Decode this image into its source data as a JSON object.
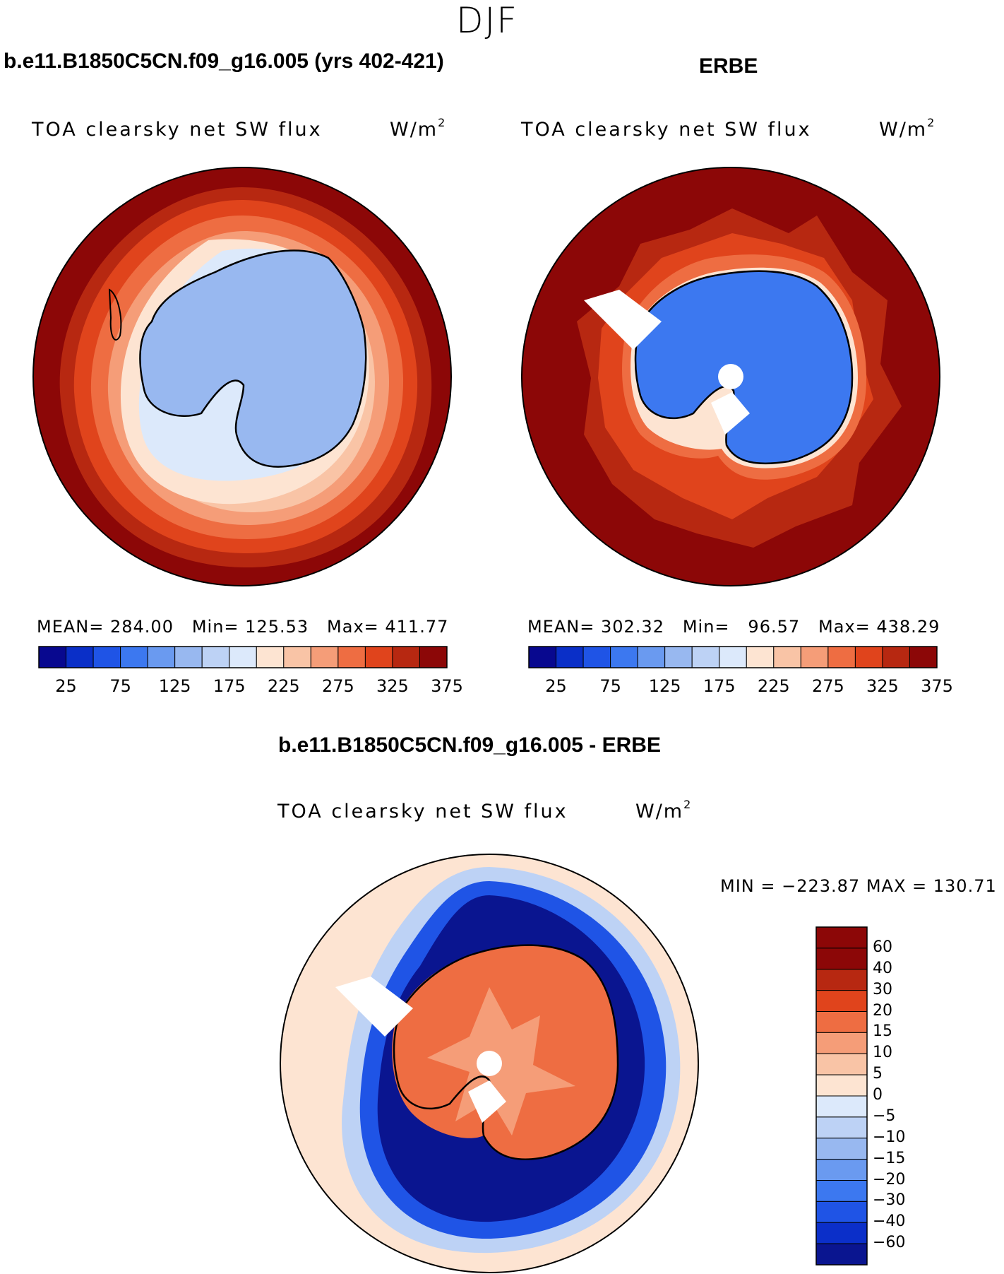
{
  "season": "DJF",
  "colors": {
    "abs_levels": [
      "#08088f",
      "#0a2fc8",
      "#1f54e6",
      "#3c78f0",
      "#6a9af0",
      "#98b8f0",
      "#bdd2f5",
      "#dce9fb",
      "#fde4d2",
      "#f9c4a6",
      "#f59d78",
      "#ee6d42",
      "#e0441c",
      "#b72811",
      "#8c0707"
    ],
    "diff_levels": [
      "#0a1590",
      "#0b2fc9",
      "#1f54e6",
      "#3c78f0",
      "#6a9af0",
      "#98b8f0",
      "#bdd2f5",
      "#dce9fb",
      "#fde4d2",
      "#f9c4a6",
      "#f59d78",
      "#ee6d42",
      "#e0441c",
      "#b72811",
      "#8c0707"
    ]
  },
  "panels": {
    "model": {
      "title": "b.e11.B1850C5CN.f09_g16.005 (yrs 402-421)",
      "variable": "TOA clearsky net SW flux",
      "units": "W/m",
      "units_sup": "2",
      "stats_text": "MEAN= 284.00   Min= 125.53   Max= 411.77"
    },
    "obs": {
      "title": "ERBE",
      "variable": "TOA clearsky net SW flux",
      "units": "W/m",
      "units_sup": "2",
      "stats_text": "MEAN= 302.32   Min=   96.57   Max= 438.29"
    },
    "diff": {
      "title": "b.e11.B1850C5CN.f09_g16.005 - ERBE",
      "variable": "TOA clearsky net SW flux",
      "units": "W/m",
      "units_sup": "2",
      "minmax_text": "MIN = -223.87 MAX = 130.71"
    }
  },
  "colorbar_abs": {
    "labels": [
      "25",
      "75",
      "125",
      "175",
      "225",
      "275",
      "325",
      "375"
    ]
  },
  "colorbar_diff": {
    "labels": [
      "60",
      "40",
      "30",
      "20",
      "15",
      "10",
      "5",
      "0",
      "-5",
      "-10",
      "-15",
      "-20",
      "-30",
      "-40",
      "-60"
    ]
  },
  "chart_data": [
    {
      "type": "heatmap",
      "title": "b.e11.B1850C5CN.f09_g16.005 (yrs 402-421)",
      "subtitle": "TOA clearsky net SW flux (W/m2)",
      "season": "DJF",
      "projection": "south polar stereographic",
      "mean": 284.0,
      "min": 125.53,
      "max": 411.77,
      "levels": [
        25,
        50,
        75,
        100,
        125,
        150,
        175,
        200,
        225,
        250,
        275,
        300,
        325,
        350,
        375
      ]
    },
    {
      "type": "heatmap",
      "title": "ERBE",
      "subtitle": "TOA clearsky net SW flux (W/m2)",
      "season": "DJF",
      "projection": "south polar stereographic",
      "mean": 302.32,
      "min": 96.57,
      "max": 438.29,
      "levels": [
        25,
        50,
        75,
        100,
        125,
        150,
        175,
        200,
        225,
        250,
        275,
        300,
        325,
        350,
        375
      ]
    },
    {
      "type": "heatmap",
      "title": "b.e11.B1850C5CN.f09_g16.005 - ERBE",
      "subtitle": "TOA clearsky net SW flux (W/m2)",
      "season": "DJF",
      "projection": "south polar stereographic",
      "min": -223.87,
      "max": 130.71,
      "levels": [
        -60,
        -40,
        -30,
        -20,
        -15,
        -10,
        -5,
        0,
        5,
        10,
        15,
        20,
        30,
        40,
        60
      ]
    }
  ]
}
